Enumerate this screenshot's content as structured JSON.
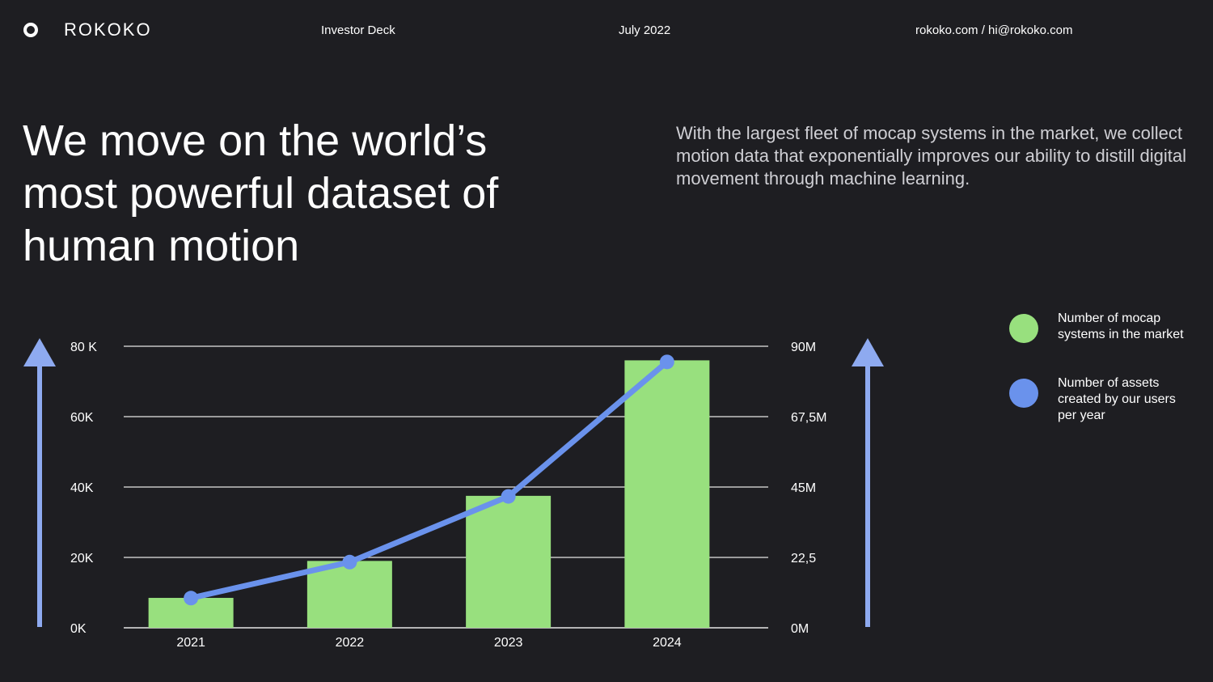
{
  "header": {
    "brand": "ROKOKO",
    "deck_label": "Investor Deck",
    "date": "July 2022",
    "contact": "rokoko.com / hi@rokoko.com"
  },
  "headline": "We move on the world’s most powerful dataset of human motion",
  "intro": "With the largest fleet of mocap systems in the market, we collect motion data that exponentially improves our ability to distill digital movement through machine learning.",
  "legend": [
    {
      "label": "Number of mocap systems in the market",
      "color": "#98e07e"
    },
    {
      "label": "Number of assets created by our users per year",
      "color": "#6a92ec"
    }
  ],
  "colors": {
    "background": "#1e1e22",
    "bar": "#98e07e",
    "line": "#6a92ec",
    "axis_arrow": "#8eaaf0",
    "grid": "#e6e6e6"
  },
  "chart_data": {
    "type": "bar+line",
    "categories": [
      "2021",
      "2022",
      "2023",
      "2024"
    ],
    "series": [
      {
        "name": "Number of mocap systems in the market",
        "type": "bar",
        "axis": "left",
        "values": [
          8500,
          19000,
          37500,
          76000
        ]
      },
      {
        "name": "Number of assets created by our users per year",
        "type": "line",
        "axis": "right",
        "values": [
          9500000,
          21000000,
          42000000,
          85000000
        ]
      }
    ],
    "left_axis": {
      "ticks": [
        "0K",
        "20K",
        "40K",
        "60K",
        "80 K"
      ],
      "ylim": [
        0,
        80000
      ]
    },
    "right_axis": {
      "ticks": [
        "0M",
        "22,5",
        "45M",
        "67,5M",
        "90M"
      ],
      "ylim": [
        0,
        90000000
      ]
    },
    "grid": true
  }
}
